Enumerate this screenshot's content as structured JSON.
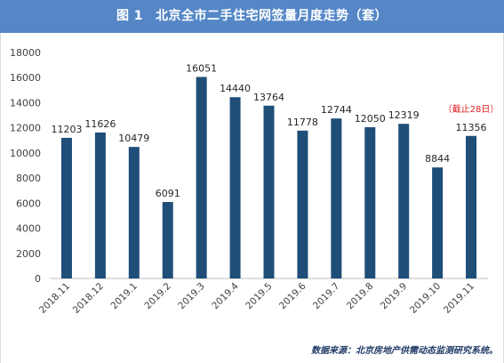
{
  "title": {
    "figure_no": "图 1",
    "text": "北京全市二手住宅网签量月度走势（套）"
  },
  "source": "数据来源：北京房地产供需动态监测研究系统。",
  "annotation": "（截止28日）",
  "colors": {
    "title_bg": "#5587c7",
    "bar": "#1f4e79",
    "annotation": "#e02020",
    "axis": "#bfbfbf"
  },
  "chart_data": {
    "type": "bar",
    "title": "北京全市二手住宅网签量月度走势（套）",
    "xlabel": "",
    "ylabel": "",
    "ylim": [
      0,
      18000
    ],
    "yticks": [
      0,
      2000,
      4000,
      6000,
      8000,
      10000,
      12000,
      14000,
      16000,
      18000
    ],
    "grid": false,
    "categories": [
      "2018.11",
      "2018.12",
      "2019.1",
      "2019.2",
      "2019.3",
      "2019.4",
      "2019.5",
      "2019.6",
      "2019.7",
      "2019.8",
      "2019.9",
      "2019.10",
      "2019.11"
    ],
    "values": [
      11203,
      11626,
      10479,
      6091,
      16051,
      14440,
      13764,
      11778,
      12744,
      12050,
      12319,
      8844,
      11356
    ],
    "annotations": [
      {
        "category": "2019.11",
        "text": "（截止28日）"
      }
    ]
  }
}
